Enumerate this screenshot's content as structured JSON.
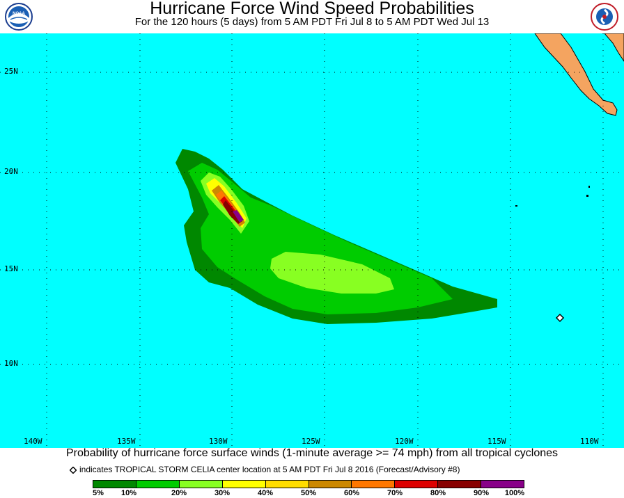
{
  "header": {
    "title": "Hurricane Force Wind Speed Probabilities",
    "subtitle": "For the 120 hours (5 days) from 5 AM PDT Fri Jul 8 to 5 AM PDT Wed Jul 13"
  },
  "logos": {
    "left": "noaa-logo-icon",
    "right": "nws-logo-icon"
  },
  "map": {
    "ocean_color": "#00ffff",
    "land_color": "#f4a460",
    "lat_labels": [
      "25N",
      "20N",
      "15N",
      "10N"
    ],
    "lon_labels": [
      "140W",
      "135W",
      "130W",
      "125W",
      "120W",
      "115W",
      "110W"
    ],
    "storm_marker": "diamond-marker-icon"
  },
  "caption": {
    "main": "Probability of hurricane force surface winds (1-minute average >= 74 mph) from all tropical cyclones",
    "marker_note": "indicates TROPICAL STORM CELIA center location at 5 AM PDT Fri Jul 8 2016 (Forecast/Advisory #8)"
  },
  "legend": {
    "colors": [
      "#008800",
      "#00cc00",
      "#88ff22",
      "#ffff00",
      "#ffdd00",
      "#cc8800",
      "#ff7700",
      "#dd0000",
      "#880000",
      "#880088"
    ],
    "labels": [
      "5%",
      "10%",
      "20%",
      "30%",
      "40%",
      "50%",
      "60%",
      "70%",
      "80%",
      "90%",
      "100%"
    ]
  }
}
